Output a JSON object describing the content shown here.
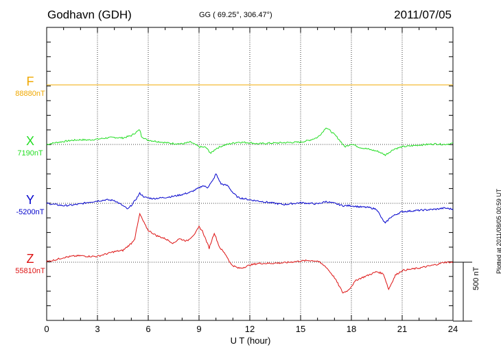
{
  "header": {
    "station": "Godhavn (GDH)",
    "coords": "GG ( 69.25°, 306.47°)",
    "date": "2011/07/05"
  },
  "footer": {
    "plotted": "Plotted at 2011/08/05 00:59 UT"
  },
  "colors": {
    "F": "#f0a800",
    "X": "#22dd22",
    "Y": "#0000cc",
    "Z": "#dd1111"
  },
  "chart_data": {
    "type": "line",
    "xlabel": "U T (hour)",
    "xlim": [
      0,
      24
    ],
    "xticks": [
      "0",
      "3",
      "6",
      "9",
      "12",
      "15",
      "18",
      "21",
      "24"
    ],
    "scale_bar": "500 nT",
    "scale_bar_nT": 500,
    "grid": true,
    "series": [
      {
        "name": "F",
        "baseline": "88880nT",
        "color": "#f0a800",
        "x": [
          0,
          24
        ],
        "y": [
          0,
          0
        ]
      },
      {
        "name": "X",
        "baseline": "7190nT",
        "color": "#22dd22",
        "x": [
          0,
          0.5,
          1,
          1.5,
          2,
          2.5,
          3,
          3.5,
          4,
          4.5,
          5,
          5.5,
          5.6,
          5.9,
          6.3,
          6.8,
          7.3,
          8,
          8.5,
          9,
          9.4,
          9.7,
          10,
          10.4,
          10.8,
          11.3,
          12,
          12.5,
          13,
          14,
          15,
          15.5,
          16,
          16.3,
          16.5,
          16.8,
          17.1,
          17.4,
          17.6,
          18,
          18.5,
          19,
          19.6,
          20,
          20.5,
          21,
          22,
          23,
          23.5,
          24
        ],
        "y": [
          0,
          15,
          25,
          35,
          40,
          38,
          45,
          55,
          60,
          55,
          75,
          125,
          70,
          40,
          30,
          20,
          10,
          5,
          20,
          -20,
          -25,
          -75,
          -35,
          -10,
          5,
          20,
          15,
          5,
          10,
          15,
          20,
          35,
          60,
          105,
          145,
          110,
          70,
          20,
          -20,
          5,
          -25,
          -40,
          -60,
          -90,
          -40,
          -20,
          -5,
          5,
          0,
          10
        ]
      },
      {
        "name": "Y",
        "baseline": "-5200nT",
        "color": "#0000cc",
        "x": [
          0,
          0.5,
          1,
          1.5,
          2,
          2.5,
          3,
          3.5,
          4,
          4.5,
          4.8,
          5.1,
          5.3,
          5.5,
          5.8,
          6.3,
          7,
          7.5,
          8,
          8.5,
          9,
          9.2,
          9.5,
          9.8,
          10,
          10.3,
          10.7,
          11,
          11.3,
          12,
          12.5,
          13,
          14,
          15,
          15.5,
          16,
          16.5,
          17,
          17.5,
          18,
          18.5,
          19,
          19.5,
          19.8,
          20,
          20.3,
          20.7,
          21,
          22,
          23,
          23.5,
          24
        ],
        "y": [
          0,
          -10,
          -20,
          -15,
          -5,
          10,
          20,
          30,
          25,
          -20,
          -50,
          0,
          40,
          85,
          50,
          40,
          50,
          60,
          75,
          95,
          130,
          150,
          135,
          190,
          250,
          165,
          150,
          90,
          50,
          30,
          20,
          10,
          -10,
          5,
          0,
          -5,
          15,
          0,
          -20,
          -20,
          -30,
          -35,
          -50,
          -130,
          -170,
          -120,
          -90,
          -70,
          -60,
          -50,
          -40,
          -50
        ]
      },
      {
        "name": "Z",
        "baseline": "55810nT",
        "color": "#dd1111",
        "x": [
          0,
          0.5,
          1,
          1.5,
          2,
          2.5,
          3,
          3.5,
          4,
          4.5,
          5,
          5.2,
          5.5,
          5.8,
          6,
          6.5,
          7,
          7.5,
          7.8,
          8.3,
          8.8,
          9,
          9.2,
          9.6,
          9.9,
          10.2,
          10.6,
          10.9,
          11.3,
          11.5,
          12,
          12.5,
          13,
          14,
          15,
          15.5,
          16,
          16.5,
          17,
          17.5,
          17.8,
          18.3,
          19,
          19.5,
          19.9,
          20.2,
          20.6,
          21,
          22,
          23,
          23.5,
          24
        ],
        "y": [
          5,
          20,
          40,
          50,
          55,
          50,
          50,
          70,
          90,
          100,
          160,
          200,
          410,
          320,
          270,
          225,
          200,
          160,
          200,
          180,
          250,
          300,
          265,
          120,
          250,
          130,
          60,
          -20,
          -50,
          -50,
          -25,
          -10,
          -10,
          -5,
          10,
          15,
          10,
          -40,
          -130,
          -260,
          -240,
          -150,
          -110,
          -80,
          -100,
          -230,
          -110,
          -70,
          -50,
          -20,
          0,
          0
        ]
      }
    ]
  }
}
